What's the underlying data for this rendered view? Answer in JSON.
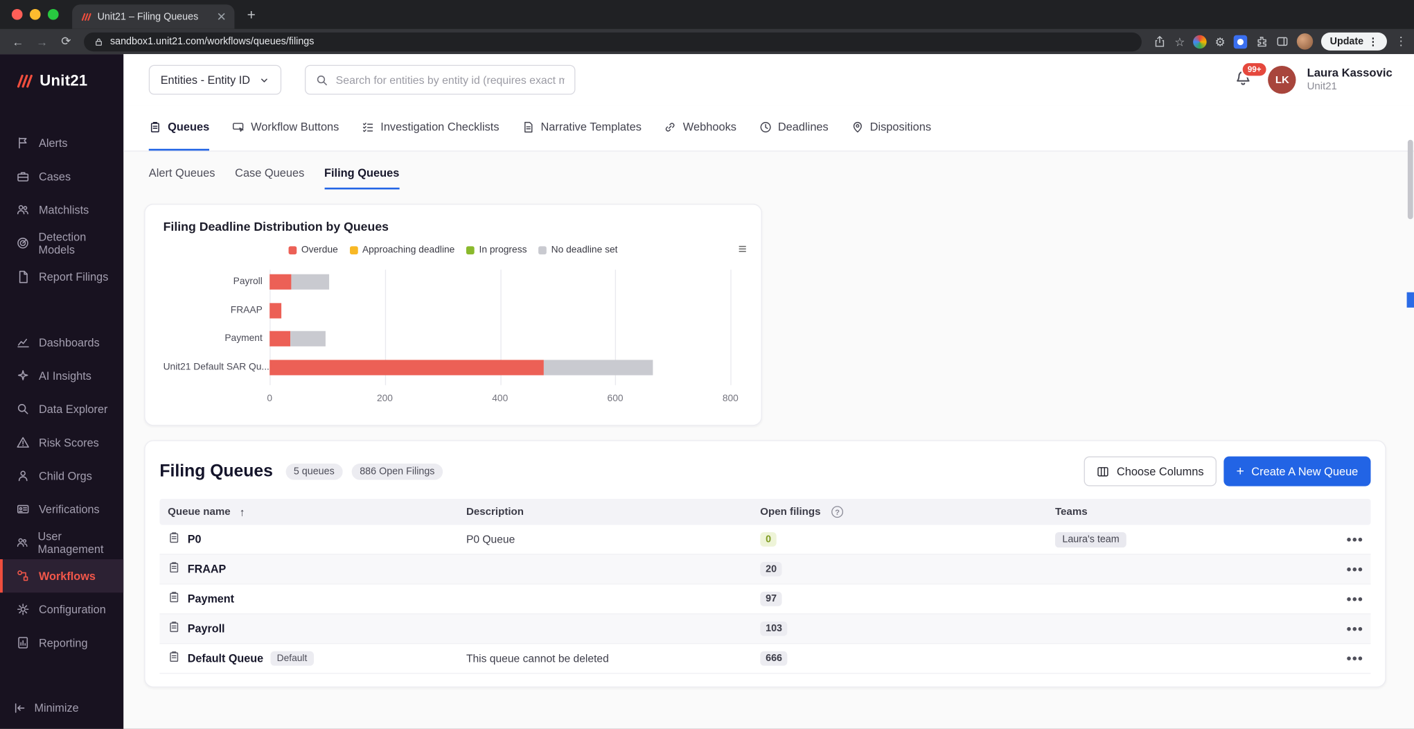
{
  "browser": {
    "tab_title": "Unit21 – Filing Queues",
    "url": "sandbox1.unit21.com/workflows/queues/filings",
    "update_label": "Update"
  },
  "sidebar": {
    "logo_text": "Unit21",
    "groups": [
      {
        "items": [
          {
            "label": "Alerts",
            "icon": "flag"
          },
          {
            "label": "Cases",
            "icon": "briefcase"
          },
          {
            "label": "Matchlists",
            "icon": "users"
          },
          {
            "label": "Detection Models",
            "icon": "radar"
          },
          {
            "label": "Report Filings",
            "icon": "document"
          }
        ]
      },
      {
        "items": [
          {
            "label": "Dashboards",
            "icon": "chart"
          },
          {
            "label": "AI Insights",
            "icon": "sparkle"
          },
          {
            "label": "Data Explorer",
            "icon": "search-data"
          },
          {
            "label": "Risk Scores",
            "icon": "warning"
          },
          {
            "label": "Child Orgs",
            "icon": "person"
          },
          {
            "label": "Verifications",
            "icon": "id-card"
          },
          {
            "label": "User Management",
            "icon": "users"
          },
          {
            "label": "Workflows",
            "icon": "workflow",
            "active": true
          },
          {
            "label": "Configuration",
            "icon": "gear"
          },
          {
            "label": "Reporting",
            "icon": "doc-chart"
          }
        ]
      }
    ],
    "minimize_label": "Minimize"
  },
  "header": {
    "entity_dropdown": "Entities - Entity ID",
    "search_placeholder": "Search for entities by entity id (requires exact match)",
    "notification_count": "99+",
    "avatar_initials": "LK",
    "user_name": "Laura Kassovic",
    "user_org": "Unit21"
  },
  "tabs": [
    {
      "label": "Queues",
      "icon": "clipboard",
      "active": true
    },
    {
      "label": "Workflow Buttons",
      "icon": "cursor-button"
    },
    {
      "label": "Investigation Checklists",
      "icon": "checklist"
    },
    {
      "label": "Narrative Templates",
      "icon": "doc-lines"
    },
    {
      "label": "Webhooks",
      "icon": "link"
    },
    {
      "label": "Deadlines",
      "icon": "clock"
    },
    {
      "label": "Dispositions",
      "icon": "pin"
    }
  ],
  "subtabs": [
    {
      "label": "Alert Queues"
    },
    {
      "label": "Case Queues"
    },
    {
      "label": "Filing Queues",
      "active": true
    }
  ],
  "chart_card": {
    "title": "Filing Deadline Distribution by Queues"
  },
  "chart_data": {
    "type": "bar",
    "orientation": "horizontal",
    "stacked": true,
    "title": "Filing Deadline Distribution by Queues",
    "categories": [
      "Payroll",
      "FRAAP",
      "Payment",
      "Unit21 Default SAR Qu..."
    ],
    "series": [
      {
        "name": "Overdue",
        "color": "#ec6056",
        "values": [
          37,
          20,
          36,
          476
        ]
      },
      {
        "name": "Approaching deadline",
        "color": "#f8b825",
        "values": [
          0,
          0,
          0,
          0
        ]
      },
      {
        "name": "In progress",
        "color": "#8ab92c",
        "values": [
          0,
          0,
          0,
          0
        ]
      },
      {
        "name": "No deadline set",
        "color": "#c9cad0",
        "values": [
          66,
          0,
          61,
          190
        ]
      }
    ],
    "xlim": [
      0,
      800
    ],
    "xticks": [
      0,
      200,
      400,
      600,
      800
    ],
    "legend_position": "top",
    "grid": "vertical"
  },
  "queues": {
    "title": "Filing Queues",
    "count_badge": "5 queues",
    "open_badge": "886 Open Filings",
    "choose_columns_label": "Choose Columns",
    "create_label": "Create A New Queue",
    "columns": [
      "Queue name",
      "Description",
      "Open filings",
      "Teams"
    ],
    "rows": [
      {
        "name": "P0",
        "description": "P0 Queue",
        "open": "0",
        "open_style": "green",
        "teams": [
          "Laura's team"
        ]
      },
      {
        "name": "FRAAP",
        "description": "",
        "open": "20",
        "open_style": "gray",
        "teams": []
      },
      {
        "name": "Payment",
        "description": "",
        "open": "97",
        "open_style": "gray",
        "teams": []
      },
      {
        "name": "Payroll",
        "description": "",
        "open": "103",
        "open_style": "gray",
        "teams": []
      },
      {
        "name": "Default Queue",
        "badge": "Default",
        "description": "This queue cannot be deleted",
        "open": "666",
        "open_style": "gray",
        "teams": []
      }
    ]
  },
  "colors": {
    "accent_blue": "#2264e5",
    "brand_red": "#f04e3e"
  }
}
